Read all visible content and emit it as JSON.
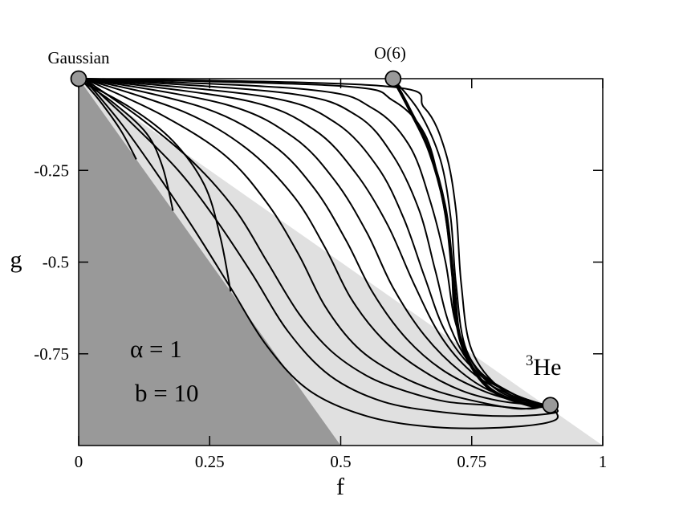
{
  "chart_data": {
    "type": "line",
    "xlabel": "f",
    "ylabel": "g",
    "xlim": [
      0,
      1
    ],
    "ylim": [
      -1,
      0
    ],
    "x_ticks": [
      {
        "value": 0,
        "label": "0"
      },
      {
        "value": 0.25,
        "label": "0.25"
      },
      {
        "value": 0.5,
        "label": "0.5"
      },
      {
        "value": 0.75,
        "label": "0.75"
      },
      {
        "value": 1,
        "label": "1"
      }
    ],
    "y_ticks": [
      {
        "value": -0.25,
        "label": "-0.25"
      },
      {
        "value": -0.5,
        "label": "-0.5"
      },
      {
        "value": -0.75,
        "label": "-0.75"
      }
    ],
    "grid": false,
    "regions": [
      {
        "name": "light-region",
        "color": "#e0e0e0",
        "points": [
          [
            0,
            0
          ],
          [
            1,
            -1
          ],
          [
            0,
            -1
          ]
        ]
      },
      {
        "name": "dark-region",
        "color": "#999999",
        "points": [
          [
            0,
            0
          ],
          [
            0.5,
            -1
          ],
          [
            0,
            -1
          ]
        ]
      }
    ],
    "fixed_points": [
      {
        "name": "Gaussian",
        "label": "Gaussian",
        "x": 0,
        "y": 0
      },
      {
        "name": "O(6)",
        "label": "O(6)",
        "x": 0.6,
        "y": 0
      },
      {
        "name": "3He",
        "label_sup": "3",
        "label_main": "He",
        "x": 0.9,
        "y": -0.89
      }
    ],
    "annotations": [
      "α = 1",
      "b = 10"
    ],
    "short_flows": [
      [
        [
          0.01,
          -0.01
        ],
        [
          0.04,
          -0.06
        ],
        [
          0.08,
          -0.14
        ],
        [
          0.11,
          -0.22
        ]
      ],
      [
        [
          0.01,
          -0.01
        ],
        [
          0.07,
          -0.07
        ],
        [
          0.13,
          -0.15
        ],
        [
          0.16,
          -0.24
        ],
        [
          0.18,
          -0.36
        ]
      ],
      [
        [
          0.01,
          -0.01
        ],
        [
          0.1,
          -0.08
        ],
        [
          0.18,
          -0.17
        ],
        [
          0.24,
          -0.29
        ],
        [
          0.27,
          -0.43
        ],
        [
          0.29,
          -0.58
        ]
      ]
    ],
    "flows": [
      [
        [
          0.01,
          0
        ],
        [
          0.12,
          -0.11
        ],
        [
          0.22,
          -0.23
        ],
        [
          0.3,
          -0.36
        ],
        [
          0.36,
          -0.5
        ],
        [
          0.42,
          -0.64
        ],
        [
          0.48,
          -0.74
        ],
        [
          0.55,
          -0.81
        ],
        [
          0.62,
          -0.85
        ],
        [
          0.7,
          -0.88
        ],
        [
          0.78,
          -0.89
        ],
        [
          0.86,
          -0.9
        ],
        [
          0.89,
          -0.89
        ]
      ],
      [
        [
          0.01,
          0
        ],
        [
          0.16,
          -0.1
        ],
        [
          0.28,
          -0.21
        ],
        [
          0.36,
          -0.34
        ],
        [
          0.42,
          -0.48
        ],
        [
          0.47,
          -0.62
        ],
        [
          0.53,
          -0.73
        ],
        [
          0.6,
          -0.8
        ],
        [
          0.68,
          -0.85
        ],
        [
          0.76,
          -0.88
        ],
        [
          0.84,
          -0.9
        ],
        [
          0.89,
          -0.89
        ]
      ],
      [
        [
          0.01,
          0
        ],
        [
          0.2,
          -0.09
        ],
        [
          0.32,
          -0.19
        ],
        [
          0.41,
          -0.32
        ],
        [
          0.47,
          -0.46
        ],
        [
          0.52,
          -0.6
        ],
        [
          0.58,
          -0.71
        ],
        [
          0.65,
          -0.79
        ],
        [
          0.73,
          -0.85
        ],
        [
          0.81,
          -0.88
        ],
        [
          0.89,
          -0.89
        ]
      ],
      [
        [
          0.01,
          0
        ],
        [
          0.24,
          -0.08
        ],
        [
          0.37,
          -0.18
        ],
        [
          0.45,
          -0.3
        ],
        [
          0.51,
          -0.44
        ],
        [
          0.56,
          -0.58
        ],
        [
          0.62,
          -0.7
        ],
        [
          0.69,
          -0.79
        ],
        [
          0.77,
          -0.85
        ],
        [
          0.84,
          -0.88
        ],
        [
          0.89,
          -0.89
        ]
      ],
      [
        [
          0.01,
          0
        ],
        [
          0.28,
          -0.07
        ],
        [
          0.41,
          -0.16
        ],
        [
          0.49,
          -0.28
        ],
        [
          0.55,
          -0.42
        ],
        [
          0.6,
          -0.57
        ],
        [
          0.66,
          -0.7
        ],
        [
          0.73,
          -0.8
        ],
        [
          0.8,
          -0.86
        ],
        [
          0.89,
          -0.89
        ]
      ],
      [
        [
          0.01,
          0
        ],
        [
          0.32,
          -0.06
        ],
        [
          0.45,
          -0.14
        ],
        [
          0.53,
          -0.26
        ],
        [
          0.59,
          -0.4
        ],
        [
          0.64,
          -0.56
        ],
        [
          0.69,
          -0.7
        ],
        [
          0.75,
          -0.8
        ],
        [
          0.82,
          -0.86
        ],
        [
          0.89,
          -0.89
        ]
      ],
      [
        [
          0.01,
          0
        ],
        [
          0.36,
          -0.05
        ],
        [
          0.49,
          -0.12
        ],
        [
          0.57,
          -0.24
        ],
        [
          0.62,
          -0.38
        ],
        [
          0.66,
          -0.54
        ],
        [
          0.7,
          -0.69
        ],
        [
          0.76,
          -0.8
        ],
        [
          0.83,
          -0.86
        ],
        [
          0.89,
          -0.89
        ]
      ],
      [
        [
          0.01,
          0
        ],
        [
          0.4,
          -0.04
        ],
        [
          0.53,
          -0.1
        ],
        [
          0.6,
          -0.21
        ],
        [
          0.65,
          -0.36
        ],
        [
          0.68,
          -0.52
        ],
        [
          0.71,
          -0.68
        ],
        [
          0.76,
          -0.8
        ],
        [
          0.83,
          -0.86
        ],
        [
          0.89,
          -0.89
        ]
      ],
      [
        [
          0.01,
          0
        ],
        [
          0.44,
          -0.03
        ],
        [
          0.56,
          -0.08
        ],
        [
          0.63,
          -0.18
        ],
        [
          0.67,
          -0.33
        ],
        [
          0.7,
          -0.5
        ],
        [
          0.72,
          -0.67
        ],
        [
          0.76,
          -0.79
        ],
        [
          0.83,
          -0.86
        ],
        [
          0.89,
          -0.89
        ]
      ],
      [
        [
          0.01,
          0
        ],
        [
          0.5,
          -0.02
        ],
        [
          0.6,
          -0.06
        ],
        [
          0.66,
          -0.15
        ],
        [
          0.69,
          -0.3
        ],
        [
          0.71,
          -0.48
        ],
        [
          0.72,
          -0.66
        ],
        [
          0.76,
          -0.79
        ],
        [
          0.83,
          -0.86
        ],
        [
          0.89,
          -0.89
        ]
      ],
      [
        [
          0.01,
          0
        ],
        [
          0.58,
          -0.02
        ],
        [
          0.66,
          -0.08
        ],
        [
          0.7,
          -0.2
        ],
        [
          0.72,
          -0.36
        ],
        [
          0.73,
          -0.56
        ],
        [
          0.75,
          -0.74
        ],
        [
          0.81,
          -0.85
        ],
        [
          0.89,
          -0.89
        ]
      ],
      [
        [
          0.6,
          0
        ],
        [
          0.65,
          -0.09
        ],
        [
          0.69,
          -0.22
        ],
        [
          0.71,
          -0.38
        ],
        [
          0.72,
          -0.56
        ],
        [
          0.74,
          -0.74
        ],
        [
          0.8,
          -0.85
        ],
        [
          0.89,
          -0.89
        ]
      ]
    ],
    "overshoot_flows": [
      [
        [
          0.01,
          0
        ],
        [
          0.1,
          -0.12
        ],
        [
          0.19,
          -0.25
        ],
        [
          0.26,
          -0.38
        ],
        [
          0.33,
          -0.53
        ],
        [
          0.4,
          -0.69
        ],
        [
          0.48,
          -0.81
        ],
        [
          0.58,
          -0.88
        ],
        [
          0.7,
          -0.91
        ],
        [
          0.82,
          -0.92
        ],
        [
          0.91,
          -0.91
        ],
        [
          0.9,
          -0.89
        ]
      ],
      [
        [
          0.01,
          0
        ],
        [
          0.08,
          -0.12
        ],
        [
          0.15,
          -0.26
        ],
        [
          0.22,
          -0.41
        ],
        [
          0.29,
          -0.57
        ],
        [
          0.36,
          -0.73
        ],
        [
          0.44,
          -0.85
        ],
        [
          0.55,
          -0.92
        ],
        [
          0.68,
          -0.95
        ],
        [
          0.82,
          -0.95
        ],
        [
          0.91,
          -0.93
        ],
        [
          0.9,
          -0.89
        ]
      ]
    ],
    "thick_flow": [
      [
        0.6,
        0
      ],
      [
        0.63,
        -0.08
      ],
      [
        0.67,
        -0.2
      ],
      [
        0.7,
        -0.36
      ],
      [
        0.715,
        -0.55
      ],
      [
        0.73,
        -0.72
      ],
      [
        0.78,
        -0.84
      ],
      [
        0.86,
        -0.89
      ],
      [
        0.9,
        -0.89
      ]
    ]
  }
}
